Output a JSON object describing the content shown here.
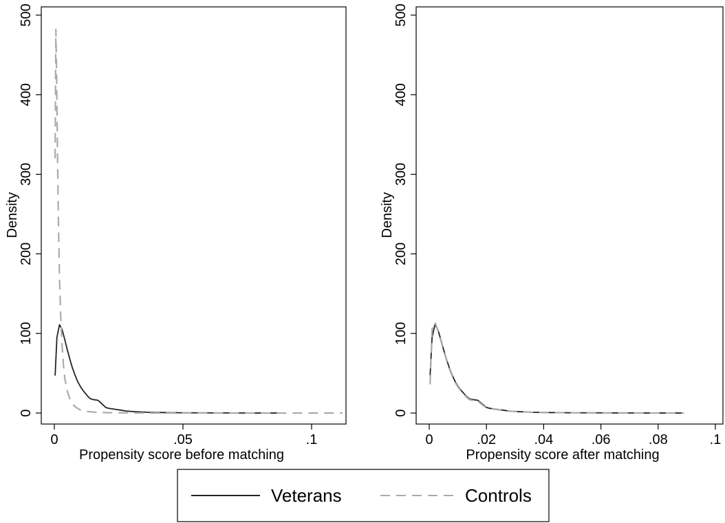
{
  "chart_data": [
    {
      "type": "line",
      "xlabel": "Propensity score before matching",
      "ylabel": "Density",
      "xlim": [
        0,
        0.114
      ],
      "ylim": [
        0,
        500
      ],
      "xticks": [
        0,
        0.05,
        0.1
      ],
      "xtick_labels": [
        "0",
        ".05",
        ".1"
      ],
      "yticks": [
        0,
        100,
        200,
        300,
        400,
        500
      ],
      "ytick_labels": [
        "0",
        "100",
        "200",
        "300",
        "400",
        "500"
      ],
      "grid": false,
      "series": [
        {
          "name": "Veterans",
          "color": "#222222",
          "dash": "solid",
          "x": [
            0.0003,
            0.001,
            0.002,
            0.003,
            0.004,
            0.005,
            0.006,
            0.007,
            0.008,
            0.009,
            0.01,
            0.011,
            0.012,
            0.013,
            0.014,
            0.015,
            0.016,
            0.017,
            0.018,
            0.019,
            0.02,
            0.021,
            0.022,
            0.024,
            0.026,
            0.028,
            0.03,
            0.033,
            0.036,
            0.04,
            0.045,
            0.05,
            0.06,
            0.07,
            0.08,
            0.089
          ],
          "y": [
            47,
            95,
            111,
            105,
            93,
            80,
            68,
            57,
            48,
            40,
            34,
            29,
            25,
            21,
            18,
            17,
            16.5,
            16,
            13,
            10,
            7,
            6,
            5.5,
            4.5,
            3.5,
            2.5,
            2,
            1.5,
            1,
            0.7,
            0.5,
            0.3,
            0.2,
            0.1,
            0.05,
            0.05
          ]
        },
        {
          "name": "Controls",
          "color": "#aaaaaa",
          "dash": "dashed",
          "x": [
            0.0003,
            0.0006,
            0.0009,
            0.0012,
            0.0016,
            0.002,
            0.0025,
            0.003,
            0.0035,
            0.004,
            0.005,
            0.006,
            0.007,
            0.008,
            0.009,
            0.01,
            0.012,
            0.014,
            0.016,
            0.02,
            0.025,
            0.03,
            0.04,
            0.05,
            0.07,
            0.09,
            0.112
          ],
          "y": [
            320,
            482,
            420,
            330,
            240,
            170,
            120,
            85,
            62,
            45,
            28,
            18,
            12,
            8,
            6,
            4,
            2.5,
            1.5,
            1,
            0.5,
            0.3,
            0.2,
            0.1,
            0.05,
            0.02,
            0.01,
            0.01
          ]
        }
      ]
    },
    {
      "type": "line",
      "xlabel": "Propensity score after matching",
      "ylabel": "Density",
      "xlim": [
        0,
        0.1
      ],
      "ylim": [
        0,
        500
      ],
      "xticks": [
        0,
        0.02,
        0.04,
        0.06,
        0.08,
        0.1
      ],
      "xtick_labels": [
        "0",
        ".02",
        ".04",
        ".06",
        ".08",
        ".1"
      ],
      "yticks": [
        0,
        100,
        200,
        300,
        400,
        500
      ],
      "ytick_labels": [
        "0",
        "100",
        "200",
        "300",
        "400",
        "500"
      ],
      "grid": false,
      "series": [
        {
          "name": "Veterans",
          "color": "#222222",
          "dash": "solid",
          "x": [
            0.0003,
            0.001,
            0.002,
            0.003,
            0.004,
            0.005,
            0.006,
            0.007,
            0.008,
            0.009,
            0.01,
            0.011,
            0.012,
            0.013,
            0.014,
            0.015,
            0.016,
            0.017,
            0.018,
            0.019,
            0.02,
            0.021,
            0.022,
            0.024,
            0.026,
            0.028,
            0.03,
            0.033,
            0.036,
            0.04,
            0.045,
            0.05,
            0.06,
            0.07,
            0.08,
            0.089
          ],
          "y": [
            47,
            95,
            111,
            105,
            93,
            80,
            68,
            57,
            48,
            40,
            34,
            29,
            25,
            21,
            18,
            17,
            16.5,
            16,
            13,
            10,
            7,
            6,
            5.5,
            4.5,
            3.5,
            2.5,
            2,
            1.5,
            1,
            0.7,
            0.5,
            0.3,
            0.2,
            0.1,
            0.05,
            0.05
          ]
        },
        {
          "name": "Controls",
          "color": "#aaaaaa",
          "dash": "dashed",
          "x": [
            0.0003,
            0.001,
            0.0016,
            0.002,
            0.003,
            0.004,
            0.005,
            0.006,
            0.007,
            0.008,
            0.009,
            0.01,
            0.011,
            0.012,
            0.013,
            0.014,
            0.015,
            0.016,
            0.017,
            0.018,
            0.019,
            0.02,
            0.021,
            0.022,
            0.024,
            0.026,
            0.028,
            0.03,
            0.033,
            0.036,
            0.04,
            0.045,
            0.05,
            0.06,
            0.07,
            0.08,
            0.089
          ],
          "y": [
            36,
            105,
            113,
            114,
            104,
            92,
            79,
            67,
            56,
            47,
            39,
            33,
            28,
            24,
            20,
            17,
            16,
            16,
            15,
            12,
            9,
            6.5,
            5.8,
            5.2,
            4.2,
            3.3,
            2.4,
            1.9,
            1.4,
            1,
            0.7,
            0.5,
            0.3,
            0.2,
            0.1,
            0.05,
            0.05
          ]
        }
      ]
    }
  ],
  "legend": {
    "placement": "bottom-center",
    "entries": [
      {
        "label": "Veterans",
        "color": "#222222",
        "dash": "solid"
      },
      {
        "label": "Controls",
        "color": "#aaaaaa",
        "dash": "dashed"
      }
    ]
  }
}
